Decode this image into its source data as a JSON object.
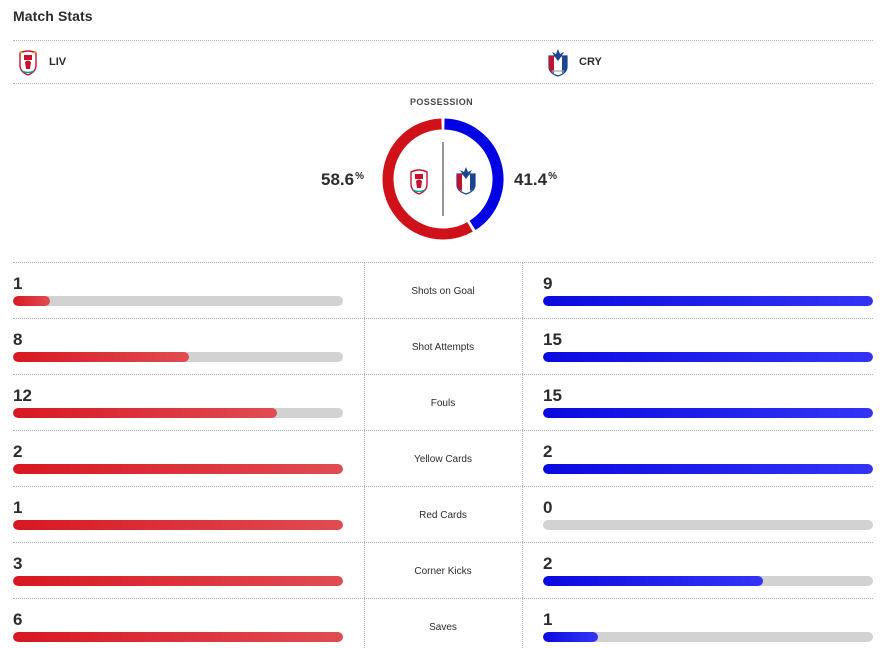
{
  "header": {
    "title": "Match Stats"
  },
  "teams": {
    "home": {
      "abbr": "LIV",
      "color": "#d0111a"
    },
    "away": {
      "abbr": "CRY",
      "color": "#0000e5"
    }
  },
  "possession": {
    "label": "POSSESSION",
    "home": 58.6,
    "away": 41.4,
    "home_text": "58.6",
    "away_text": "41.4",
    "unit": "%"
  },
  "stats": [
    {
      "label": "Shots on Goal",
      "home": 1,
      "away": 9
    },
    {
      "label": "Shot Attempts",
      "home": 8,
      "away": 15
    },
    {
      "label": "Fouls",
      "home": 12,
      "away": 15
    },
    {
      "label": "Yellow Cards",
      "home": 2,
      "away": 2
    },
    {
      "label": "Red Cards",
      "home": 1,
      "away": 0
    },
    {
      "label": "Corner Kicks",
      "home": 3,
      "away": 2
    },
    {
      "label": "Saves",
      "home": 6,
      "away": 1
    }
  ]
}
